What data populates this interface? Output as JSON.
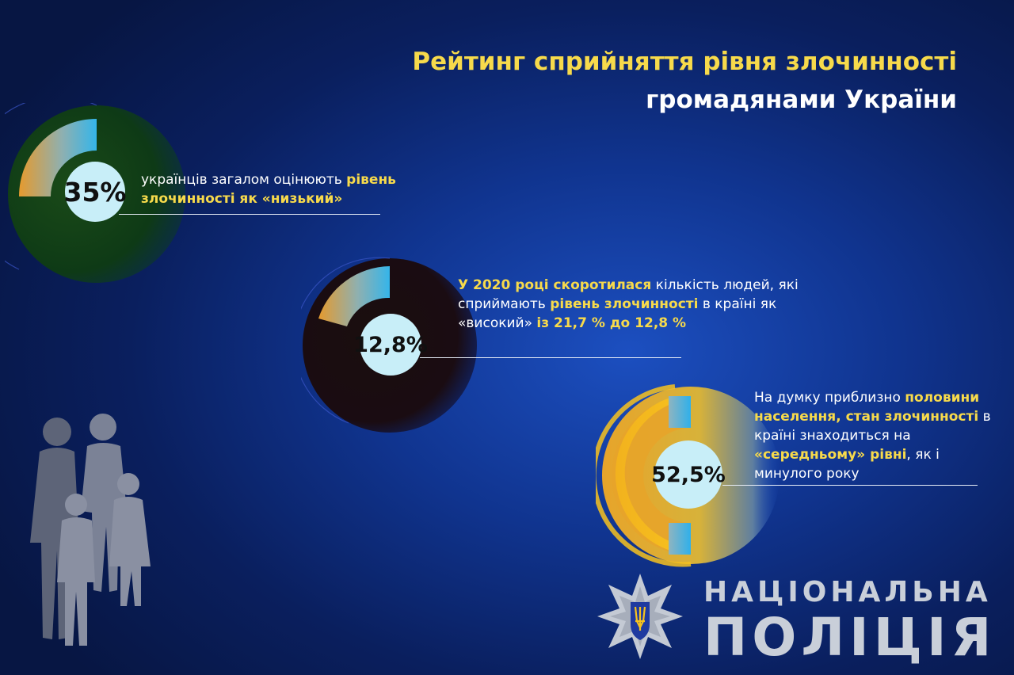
{
  "header": {
    "title_line1": "Рейтинг сприйняття рівня злочинності",
    "title_line2": "громадянами України"
  },
  "stats": [
    {
      "value_label": "35%",
      "text_parts": [
        "українців загалом оцінюють ",
        "рівень злочинності як «низький»"
      ]
    },
    {
      "value_label": "12,8%",
      "text_parts": [
        "У 2020 році скоротилася",
        " кількість людей, які сприймають ",
        "рівень злочинності",
        " в країні як «високий» ",
        "із 21,7 % до 12,8 %"
      ]
    },
    {
      "value_label": "52,5%",
      "text_parts": [
        "На думку приблизно ",
        "половини населення, стан злочинності",
        " в країні знаходиться на ",
        "«середньому» рівні",
        ", як і минулого року"
      ]
    }
  ],
  "logo": {
    "line1": "НАЦІОНАЛЬНА",
    "line2": "ПОЛІЦІЯ",
    "emblem": "police-star-trident-icon"
  },
  "illustration": {
    "name": "family-silhouette-icon"
  },
  "colors": {
    "accent_yellow": "#f7da4b",
    "arc_orange": "#e0a030",
    "arc_blue": "#3bb4e8",
    "center_circle": "#c8eef8",
    "background_blue": "#1c4fc0"
  }
}
